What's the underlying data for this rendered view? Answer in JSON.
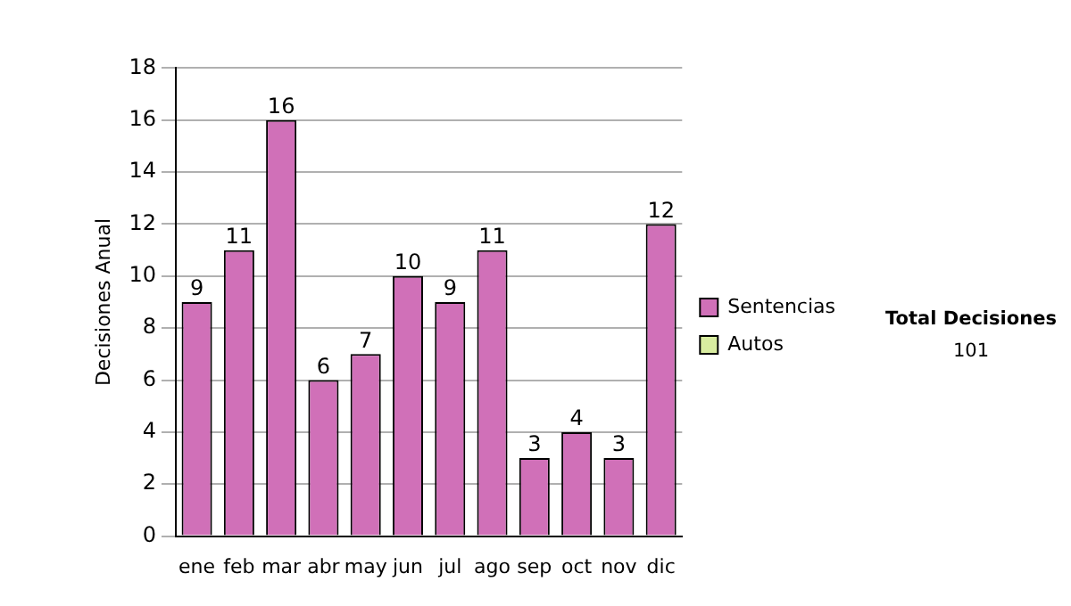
{
  "chart_data": {
    "type": "bar",
    "ylabel": "Decisiones Anual",
    "categories": [
      "ene",
      "feb",
      "mar",
      "abr",
      "may",
      "jun",
      "jul",
      "ago",
      "sep",
      "oct",
      "nov",
      "dic"
    ],
    "series": [
      {
        "name": "Sentencias",
        "color": "#d070b8",
        "values": [
          9,
          11,
          16,
          6,
          7,
          10,
          9,
          11,
          3,
          4,
          3,
          12
        ],
        "value_labels": [
          "9",
          "11",
          "16",
          "6",
          "7",
          "10",
          "9",
          "11",
          "3",
          "4",
          "3",
          "12"
        ]
      },
      {
        "name": "Autos",
        "color": "#d8eca0",
        "values": [
          null,
          null,
          null,
          null,
          null,
          null,
          null,
          null,
          null,
          null,
          null,
          null
        ]
      }
    ],
    "ylim": [
      0,
      18
    ],
    "yticks": [
      0,
      2,
      4,
      6,
      8,
      10,
      12,
      14,
      16,
      18
    ],
    "grid": "y",
    "legend": "right",
    "annotations": [
      "Total Decisiones",
      "101"
    ]
  }
}
